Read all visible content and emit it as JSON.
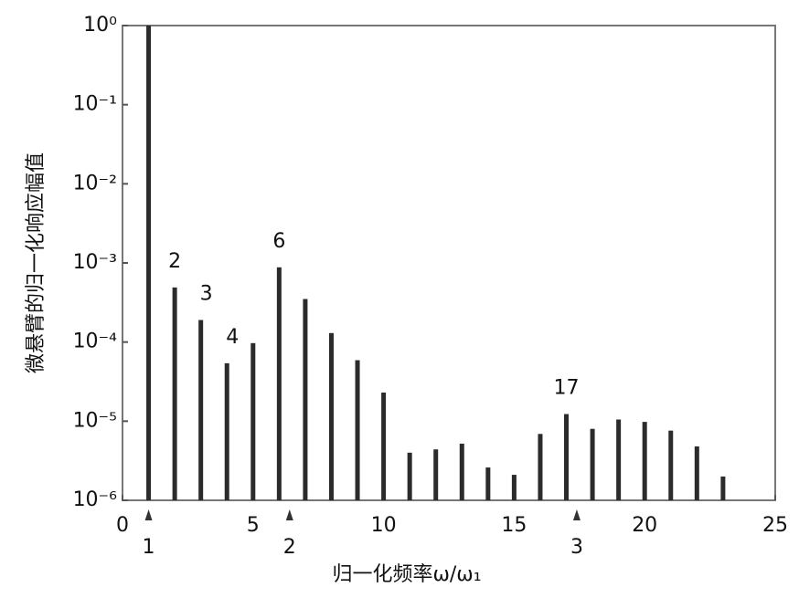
{
  "chart_data": {
    "type": "bar",
    "x": [
      1,
      2,
      3,
      4,
      5,
      6,
      7,
      8,
      9,
      10,
      11,
      12,
      13,
      14,
      15,
      16,
      17,
      18,
      19,
      20,
      21,
      22,
      23
    ],
    "values": [
      1,
      0.00049,
      0.00019,
      5.4e-05,
      9.7e-05,
      0.00088,
      0.00035,
      0.00013,
      5.9e-05,
      2.3e-05,
      4e-06,
      4.4e-06,
      5.2e-06,
      2.6e-06,
      2.1e-06,
      6.9e-06,
      1.23e-05,
      8e-06,
      1.05e-05,
      9.8e-06,
      7.6e-06,
      4.8e-06,
      2e-06
    ],
    "color": "#2b2b2b",
    "xlabel": "归一化频率ω/ω₁",
    "ylabel": "微悬臂的归一化响应幅值",
    "xlim": [
      0,
      25
    ],
    "xticks": [
      0,
      5,
      10,
      15,
      20,
      25
    ],
    "ylim": [
      1e-06,
      1
    ],
    "yscale": "log",
    "yticks": [
      {
        "value": 1,
        "label": "10⁰"
      },
      {
        "value": 0.1,
        "label": "10⁻¹"
      },
      {
        "value": 0.01,
        "label": "10⁻²"
      },
      {
        "value": 0.001,
        "label": "10⁻³"
      },
      {
        "value": 0.0001,
        "label": "10⁻⁴"
      },
      {
        "value": 1e-05,
        "label": "10⁻⁵"
      },
      {
        "value": 1e-06,
        "label": "10⁻⁶"
      }
    ],
    "annotations": [
      {
        "x": 2,
        "text": "2"
      },
      {
        "x": 3,
        "text": "3"
      },
      {
        "x": 4,
        "text": "4"
      },
      {
        "x": 6,
        "text": "6"
      },
      {
        "x": 17,
        "text": "17"
      }
    ],
    "markers": [
      {
        "x": 1,
        "label": "1"
      },
      {
        "x": 6.4,
        "label": "2"
      },
      {
        "x": 17.4,
        "label": "3"
      }
    ]
  }
}
